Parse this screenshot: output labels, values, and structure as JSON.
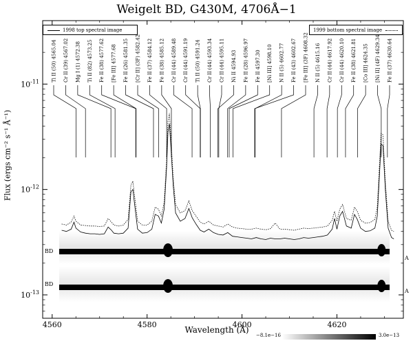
{
  "title": "Weigelt BD, G430M, 4706Å−1",
  "legend": {
    "left_label": "1998 top spectral image",
    "right_label": "1999 bottom spectral image"
  },
  "colorbar": {
    "min_label": "−8.1e−16",
    "max_label": "3.0e−13"
  },
  "image_labels": {
    "top_left": "BD",
    "top_right": "A",
    "bottom_left": "BD",
    "bottom_right": "A"
  },
  "chart_data": {
    "type": "line",
    "title": "Weigelt BD, G430M, 4706Å−1",
    "xlabel": "Wavelength (Å)",
    "ylabel": "Flux (ergs cm⁻² s⁻¹ Å⁻¹)",
    "xlim": [
      4558,
      4634
    ],
    "ylim": [
      6e-14,
      4e-11
    ],
    "yscale": "log",
    "x_ticks": [
      4560,
      4580,
      4600,
      4620
    ],
    "x_tick_labels": [
      "4560",
      "4580",
      "4600",
      "4620"
    ],
    "y_ticks": [
      1e-13,
      1e-12,
      1e-11
    ],
    "y_tick_labels": [
      "10⁻¹³",
      "10⁻¹²",
      "10⁻¹¹"
    ],
    "legend_position": "top",
    "series": [
      {
        "name": "1998 top spectral image",
        "style": "solid",
        "x": [
          4562.0,
          4563.0,
          4564.0,
          4564.6,
          4565.0,
          4566.0,
          4567.0,
          4568.0,
          4569.0,
          4570.0,
          4571.0,
          4571.8,
          4572.5,
          4573.0,
          4574.0,
          4575.0,
          4576.0,
          4576.6,
          4577.0,
          4577.5,
          4578.0,
          4579.0,
          4580.0,
          4581.0,
          4581.7,
          4582.4,
          4583.0,
          4583.6,
          4584.1,
          4584.4,
          4584.7,
          4585.0,
          4585.5,
          4586.0,
          4587.0,
          4588.0,
          4588.8,
          4589.5,
          4590.3,
          4591.2,
          4592.0,
          4593.0,
          4594.0,
          4595.0,
          4596.0,
          4597.0,
          4598.0,
          4599.0,
          4600.0,
          4601.0,
          4602.0,
          4603.0,
          4604.0,
          4605.0,
          4606.0,
          4607.0,
          4608.0,
          4609.0,
          4610.0,
          4611.0,
          4612.0,
          4613.0,
          4614.0,
          4615.0,
          4616.0,
          4617.0,
          4618.0,
          4619.0,
          4619.5,
          4620.0,
          4620.6,
          4621.2,
          4622.0,
          4623.0,
          4623.7,
          4624.3,
          4625.0,
          4626.0,
          4627.0,
          4628.0,
          4628.5,
          4628.9,
          4629.3,
          4629.7,
          4630.2,
          4630.8,
          4631.5,
          4632.0
        ],
        "y": [
          4.1e-13,
          4e-13,
          4.2e-13,
          4.9e-13,
          4.3e-13,
          3.95e-13,
          3.85e-13,
          3.8e-13,
          3.8e-13,
          3.75e-13,
          3.8e-13,
          4.4e-13,
          4.1e-13,
          3.85e-13,
          3.8e-13,
          3.85e-13,
          4.3e-13,
          9.5e-13,
          1e-12,
          6.5e-13,
          4.2e-13,
          3.85e-13,
          3.9e-13,
          4.2e-13,
          5.8e-13,
          5.6e-13,
          4.8e-13,
          6.5e-13,
          1.6e-12,
          3.5e-12,
          4.2e-12,
          2.6e-12,
          1.1e-12,
          6e-13,
          5e-13,
          5.3e-13,
          6.6e-13,
          5.4e-13,
          4.7e-13,
          4.1e-13,
          3.95e-13,
          4.2e-13,
          3.9e-13,
          3.75e-13,
          3.7e-13,
          3.9e-13,
          3.6e-13,
          3.55e-13,
          3.5e-13,
          3.45e-13,
          3.4e-13,
          3.5e-13,
          3.4e-13,
          3.35e-13,
          3.45e-13,
          3.4e-13,
          3.4e-13,
          3.45e-13,
          3.4e-13,
          3.35e-13,
          3.4e-13,
          3.5e-13,
          3.45e-13,
          3.5e-13,
          3.55e-13,
          3.6e-13,
          3.7e-13,
          4.2e-13,
          5.3e-13,
          4.2e-13,
          5.6e-13,
          6.2e-13,
          4.5e-13,
          4.3e-13,
          5.8e-13,
          5.2e-13,
          4.3e-13,
          4e-13,
          4.05e-13,
          4.3e-13,
          5.6e-13,
          1.2e-12,
          2.7e-12,
          2.6e-12,
          1e-12,
          4.3e-13,
          3.5e-13,
          3.4e-13
        ]
      },
      {
        "name": "1999 bottom spectral image",
        "style": "dotted",
        "x": [
          4562.0,
          4563.0,
          4564.0,
          4564.6,
          4565.0,
          4566.0,
          4567.0,
          4568.0,
          4569.0,
          4570.0,
          4571.0,
          4571.8,
          4572.5,
          4573.0,
          4574.0,
          4575.0,
          4576.0,
          4576.6,
          4577.0,
          4577.5,
          4578.0,
          4579.0,
          4580.0,
          4581.0,
          4581.7,
          4582.4,
          4583.0,
          4583.6,
          4584.1,
          4584.4,
          4584.7,
          4585.0,
          4585.5,
          4586.0,
          4587.0,
          4588.0,
          4588.8,
          4589.5,
          4590.3,
          4591.2,
          4592.0,
          4593.0,
          4594.0,
          4595.0,
          4596.0,
          4597.0,
          4598.0,
          4599.0,
          4600.0,
          4601.0,
          4602.0,
          4603.0,
          4604.0,
          4605.0,
          4606.0,
          4607.0,
          4608.0,
          4609.0,
          4610.0,
          4611.0,
          4612.0,
          4613.0,
          4614.0,
          4615.0,
          4616.0,
          4617.0,
          4618.0,
          4619.0,
          4619.5,
          4620.0,
          4620.6,
          4621.2,
          4622.0,
          4623.0,
          4623.7,
          4624.3,
          4625.0,
          4626.0,
          4627.0,
          4628.0,
          4628.5,
          4628.9,
          4629.3,
          4629.7,
          4630.2,
          4630.8,
          4631.5,
          4632.0
        ],
        "y": [
          4.7e-13,
          4.6e-13,
          4.9e-13,
          5.6e-13,
          5e-13,
          4.6e-13,
          4.55e-13,
          4.5e-13,
          4.5e-13,
          4.45e-13,
          4.5e-13,
          5.3e-13,
          4.9e-13,
          4.6e-13,
          4.5e-13,
          4.6e-13,
          5.2e-13,
          1.1e-12,
          1.2e-12,
          7.8e-13,
          5e-13,
          4.6e-13,
          4.6e-13,
          5e-13,
          6.8e-13,
          6.5e-13,
          5.6e-13,
          7.5e-13,
          1.9e-12,
          4.4e-12,
          5.3e-12,
          3.2e-12,
          1.3e-12,
          7.2e-13,
          6e-13,
          6.3e-13,
          7.8e-13,
          6.3e-13,
          5.6e-13,
          4.9e-13,
          4.7e-13,
          5e-13,
          4.6e-13,
          4.5e-13,
          4.4e-13,
          4.7e-13,
          4.4e-13,
          4.3e-13,
          4.25e-13,
          4.2e-13,
          4.2e-13,
          4.3e-13,
          4.2e-13,
          4.15e-13,
          4.25e-13,
          4.8e-13,
          4.2e-13,
          4.2e-13,
          4.15e-13,
          4.1e-13,
          4.2e-13,
          4.3e-13,
          4.25e-13,
          4.3e-13,
          4.35e-13,
          4.4e-13,
          4.5e-13,
          5.1e-13,
          6.2e-13,
          5e-13,
          6.5e-13,
          7.2e-13,
          5.3e-13,
          5.1e-13,
          6.8e-13,
          6.2e-13,
          5.1e-13,
          4.8e-13,
          4.85e-13,
          5.2e-13,
          6.8e-13,
          1.5e-12,
          3.4e-12,
          3.3e-12,
          1.2e-12,
          5e-13,
          4.1e-13,
          4e-13
        ]
      }
    ],
    "annotations": [
      {
        "label": "Ti II  (50) 4565.04",
        "x": 4565.04
      },
      {
        "label": "Cr II  (39) 4567.02",
        "x": 4567.02
      },
      {
        "label": "Mg I  (1) 4572.38",
        "x": 4572.38
      },
      {
        "label": "Ti II  (82) 4573.25",
        "x": 4573.25
      },
      {
        "label": "Fe II  (38) 4577.62",
        "x": 4577.62
      },
      {
        "label": "[Fe III] 4577.68",
        "x": 4577.68
      },
      {
        "label": "Fe II  (26) 4581.35",
        "x": 4581.35
      },
      {
        "label": "[Cr II]  (3F) 4582.42",
        "x": 4582.42
      },
      {
        "label": "Fe II  (37) 4584.12",
        "x": 4584.12
      },
      {
        "label": "Fe II  (38) 4585.12",
        "x": 4585.12
      },
      {
        "label": "Cr II  (44) 4589.48",
        "x": 4589.48
      },
      {
        "label": "Cr II  (44) 4591.19",
        "x": 4591.19
      },
      {
        "label": "Ti II  (50) 4591.24",
        "x": 4591.24
      },
      {
        "label": "Cr II  (44) 4593.34",
        "x": 4593.34
      },
      {
        "label": "Cr II  (44) 4595.11",
        "x": 4595.11
      },
      {
        "label": "Ni II 4594.93",
        "x": 4594.93
      },
      {
        "label": "Fe II  (28) 4596.97",
        "x": 4596.97
      },
      {
        "label": "Fe II 4597.30",
        "x": 4597.3
      },
      {
        "label": "[Ni III] 4598.10",
        "x": 4598.1
      },
      {
        "label": "N II  (5) 4602.77",
        "x": 4602.77
      },
      {
        "label": "Fe II  (43) 4602.67",
        "x": 4602.67
      },
      {
        "label": "[Fe III]  (3F) 4608.32",
        "x": 4608.32
      },
      {
        "label": "N II  (5) 4615.16",
        "x": 4615.16
      },
      {
        "label": "Cr II  (44) 4617.92",
        "x": 4617.92
      },
      {
        "label": "Cr II  (44) 4620.10",
        "x": 4620.1
      },
      {
        "label": "Fe II  (38) 4621.81",
        "x": 4621.81
      },
      {
        "label": "[Co III] 4624.35",
        "x": 4624.35
      },
      {
        "label": "[Ni II]  (4F) 4629.34",
        "x": 4629.34
      },
      {
        "label": "Fe II  (37) 4630.64",
        "x": 4630.64
      }
    ]
  }
}
